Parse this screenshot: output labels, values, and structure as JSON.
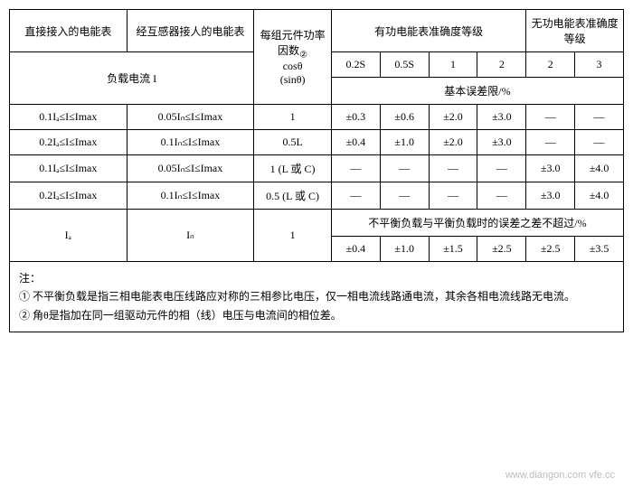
{
  "header": {
    "col1": "直接接入的电能表",
    "col2": "经互感器接人的电能表",
    "col3a": "每组元件功率因数",
    "col3sup": "②",
    "col3b": "cosθ",
    "col3c": "(sinθ)",
    "groupActive": "有功电能表准确度等级",
    "groupReactive": "无功电能表准确度等级",
    "loadCurrent": "负载电流 I",
    "c1": "0.2S",
    "c2": "0.5S",
    "c3": "1",
    "c4": "2",
    "c5": "2",
    "c6": "3",
    "errLimit": "基本误差限/%"
  },
  "rows": [
    {
      "a": "0.1Iₐ≤I≤Imax",
      "b": "0.05Iₙ≤I≤Imax",
      "c": "1",
      "v": [
        "±0.3",
        "±0.6",
        "±2.0",
        "±3.0",
        "—",
        "—"
      ]
    },
    {
      "a": "0.2Iₐ≤I≤Imax",
      "b": "0.1Iₙ≤I≤Imax",
      "c": "0.5L",
      "v": [
        "±0.4",
        "±1.0",
        "±2.0",
        "±3.0",
        "—",
        "—"
      ]
    },
    {
      "a": "0.1Iₐ≤I≤Imax",
      "b": "0.05Iₙ≤I≤Imax",
      "c": "1 (L 或 C)",
      "v": [
        "—",
        "—",
        "—",
        "—",
        "±3.0",
        "±4.0"
      ]
    },
    {
      "a": "0.2Iₐ≤I≤Imax",
      "b": "0.1Iₙ≤I≤Imax",
      "c": "0.5 (L 或 C)",
      "v": [
        "—",
        "—",
        "—",
        "—",
        "±3.0",
        "±4.0"
      ]
    }
  ],
  "balance": {
    "a": "Iₐ",
    "b": "Iₙ",
    "c": "1",
    "note": "不平衡负载与平衡负载时的误差之差不超过/%",
    "v": [
      "±0.4",
      "±1.0",
      "±1.5",
      "±2.5",
      "±2.5",
      "±3.5"
    ]
  },
  "notes": {
    "head": "注：",
    "n1": "① 不平衡负载是指三相电能表电压线路应对称的三相参比电压，仅一相电流线路通电流，其余各相电流线路无电流。",
    "n2": "② 角θ是指加在同一组驱动元件的相（线）电压与电流间的相位差。"
  },
  "watermark": "www.diangon.com vfe.cc"
}
